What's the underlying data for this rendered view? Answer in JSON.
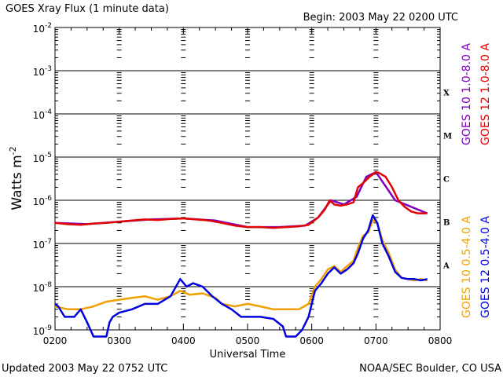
{
  "chart_data": {
    "type": "line",
    "title": "GOES Xray Flux (1 minute data)",
    "begin_label": "Begin: 2003 May 22 0200 UTC",
    "xlabel": "Universal Time",
    "ylabel": "Watts m",
    "ylabel_exp": "-2",
    "x_ticks": [
      "0200",
      "0300",
      "0400",
      "0500",
      "0600",
      "0700",
      "0800"
    ],
    "xlim": [
      2.0,
      8.0
    ],
    "y_scale": "log",
    "ylim": [
      1e-09,
      0.01
    ],
    "y_ticks": [
      {
        "value": 0.01,
        "exp": "-2"
      },
      {
        "value": 0.001,
        "exp": "-3"
      },
      {
        "value": 0.0001,
        "exp": "-4"
      },
      {
        "value": 1e-05,
        "exp": "-5"
      },
      {
        "value": 1e-06,
        "exp": "-6"
      },
      {
        "value": 1e-07,
        "exp": "-7"
      },
      {
        "value": 1e-08,
        "exp": "-8"
      },
      {
        "value": 1e-09,
        "exp": "-9"
      }
    ],
    "flare_classes": [
      {
        "label": "X",
        "value": 0.000316
      },
      {
        "label": "M",
        "value": 3.16e-05
      },
      {
        "label": "C",
        "value": 3.16e-06
      },
      {
        "label": "B",
        "value": 3.16e-07
      },
      {
        "label": "A",
        "value": 3.16e-08
      }
    ],
    "series": [
      {
        "name": "GOES 10 1.0-8.0 A",
        "color": "#8000c0",
        "x": [
          2.0,
          2.5,
          3.0,
          3.5,
          4.0,
          4.5,
          5.0,
          5.5,
          5.9,
          6.1,
          6.3,
          6.5,
          6.7,
          6.85,
          7.0,
          7.3,
          7.8
        ],
        "y": [
          3e-07,
          2.8e-07,
          3.2e-07,
          3.6e-07,
          3.8e-07,
          3.4e-07,
          2.4e-07,
          2.4e-07,
          2.6e-07,
          4e-07,
          1e-06,
          8e-07,
          1.2e-06,
          3.5e-06,
          4.5e-06,
          1e-06,
          5e-07
        ]
      },
      {
        "name": "GOES 12 1.0-8.0 A",
        "color": "#e00000",
        "x": [
          2.0,
          2.2,
          2.4,
          2.6,
          2.8,
          3.0,
          3.2,
          3.4,
          3.6,
          3.8,
          4.0,
          4.2,
          4.4,
          4.6,
          4.8,
          5.0,
          5.2,
          5.4,
          5.6,
          5.8,
          5.95,
          6.1,
          6.2,
          6.28,
          6.35,
          6.45,
          6.55,
          6.65,
          6.72,
          6.8,
          6.9,
          7.0,
          7.05,
          7.15,
          7.25,
          7.35,
          7.45,
          7.55,
          7.65,
          7.8
        ],
        "y": [
          3e-07,
          2.8e-07,
          2.7e-07,
          2.9e-07,
          3e-07,
          3.2e-07,
          3.4e-07,
          3.6e-07,
          3.5e-07,
          3.7e-07,
          3.8e-07,
          3.6e-07,
          3.4e-07,
          3e-07,
          2.6e-07,
          2.4e-07,
          2.4e-07,
          2.3e-07,
          2.4e-07,
          2.5e-07,
          2.7e-07,
          4e-07,
          6e-07,
          1e-06,
          8e-07,
          7.5e-07,
          8e-07,
          9e-07,
          2e-06,
          2.5e-06,
          3.5e-06,
          4.5e-06,
          4.3e-06,
          3.5e-06,
          2e-06,
          1e-06,
          7e-07,
          5.5e-07,
          5e-07,
          5e-07
        ]
      },
      {
        "name": "GOES 10 0.5-4.0 A",
        "color": "#f0a000",
        "x": [
          2.0,
          2.2,
          2.4,
          2.6,
          2.8,
          3.0,
          3.2,
          3.4,
          3.6,
          3.8,
          3.95,
          4.1,
          4.3,
          4.5,
          4.6,
          4.8,
          5.0,
          5.2,
          5.4,
          5.6,
          5.8,
          5.95,
          6.05,
          6.15,
          6.25,
          6.35,
          6.45,
          6.55,
          6.65,
          6.72,
          6.8,
          6.88,
          6.95,
          7.02,
          7.1,
          7.2,
          7.3,
          7.4,
          7.5,
          7.6,
          7.7,
          7.8
        ],
        "y": [
          3.5e-09,
          3e-09,
          3e-09,
          3.5e-09,
          4.5e-09,
          5e-09,
          5.5e-09,
          6e-09,
          5e-09,
          6e-09,
          8e-09,
          6.5e-09,
          7e-09,
          5.5e-09,
          4e-09,
          3.5e-09,
          4e-09,
          3.5e-09,
          3e-09,
          3e-09,
          3e-09,
          4e-09,
          1e-08,
          1.5e-08,
          2.5e-08,
          3e-08,
          2.2e-08,
          3e-08,
          4e-08,
          8e-08,
          1.5e-07,
          1.8e-07,
          3.5e-07,
          3e-07,
          1.2e-07,
          6e-08,
          2.5e-08,
          1.6e-08,
          1.5e-08,
          1.4e-08,
          1.5e-08,
          1.4e-08
        ]
      },
      {
        "name": "GOES 12 0.5-4.0 A",
        "color": "#0000e0",
        "x": [
          2.0,
          2.05,
          2.15,
          2.3,
          2.4,
          2.5,
          2.6,
          2.7,
          2.8,
          2.85,
          2.9,
          3.0,
          3.2,
          3.4,
          3.6,
          3.8,
          3.95,
          4.05,
          4.15,
          4.3,
          4.45,
          4.6,
          4.75,
          4.9,
          5.0,
          5.2,
          5.4,
          5.55,
          5.6,
          5.75,
          5.85,
          5.95,
          6.05,
          6.15,
          6.25,
          6.35,
          6.45,
          6.55,
          6.65,
          6.72,
          6.8,
          6.88,
          6.95,
          7.02,
          7.1,
          7.2,
          7.3,
          7.4,
          7.5,
          7.6,
          7.7,
          7.8
        ],
        "y": [
          4e-09,
          3.5e-09,
          2e-09,
          2e-09,
          3e-09,
          1.5e-09,
          7e-10,
          7e-10,
          7e-10,
          1.5e-09,
          2e-09,
          2.5e-09,
          3e-09,
          4e-09,
          4e-09,
          6e-09,
          1.5e-08,
          1e-08,
          1.2e-08,
          1e-08,
          6e-09,
          4e-09,
          3e-09,
          2e-09,
          2e-09,
          2e-09,
          1.8e-09,
          1.2e-09,
          7e-10,
          7e-10,
          1e-09,
          2e-09,
          8e-09,
          1.2e-08,
          2e-08,
          2.8e-08,
          2e-08,
          2.5e-08,
          3.5e-08,
          6e-08,
          1.3e-07,
          2e-07,
          4.5e-07,
          3e-07,
          1e-07,
          5e-08,
          2.2e-08,
          1.6e-08,
          1.5e-08,
          1.5e-08,
          1.4e-08,
          1.5e-08
        ]
      }
    ]
  },
  "footer": {
    "updated": "Updated 2003 May 22 0752 UTC",
    "credit": "NOAA/SEC Boulder, CO USA"
  }
}
